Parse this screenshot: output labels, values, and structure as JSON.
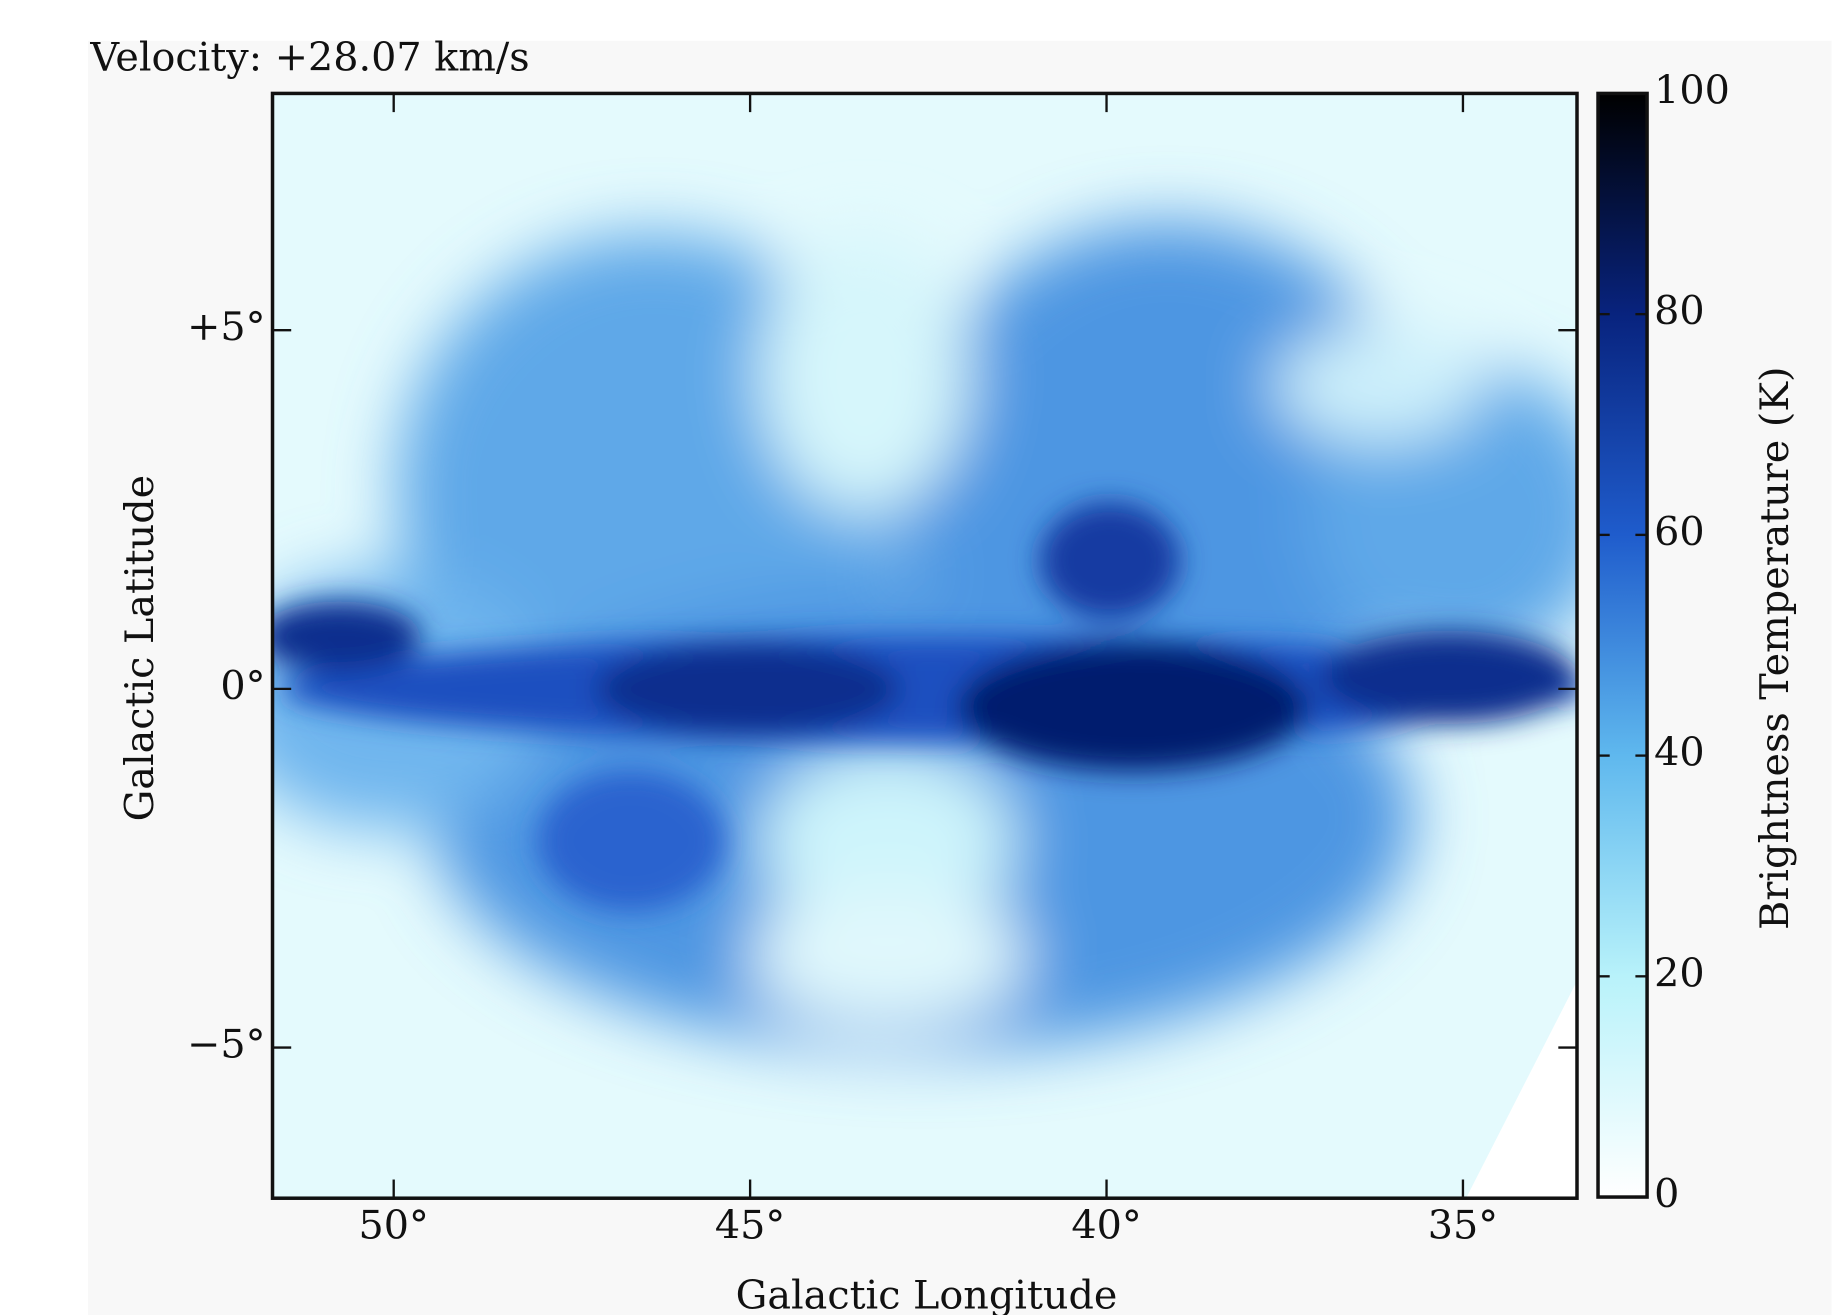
{
  "chart_data": {
    "type": "heatmap",
    "title": "Velocity: +28.07 km/s",
    "x_label": "Galactic Longitude",
    "y_label": "Galactic Latitude",
    "xlim": [
      51.7,
      33.4
    ],
    "ylim": [
      -7.1,
      8.3
    ],
    "xticks": [
      {
        "value": 50,
        "label": "50°"
      },
      {
        "value": 45,
        "label": "45°"
      },
      {
        "value": 40,
        "label": "40°"
      },
      {
        "value": 35,
        "label": "35°"
      }
    ],
    "yticks": [
      {
        "value": 5,
        "label": "+5°"
      },
      {
        "value": 0,
        "label": "0°"
      },
      {
        "value": -5,
        "label": "−5°"
      }
    ],
    "colorbar": {
      "label": "Brightness Temperature (K)",
      "lim": [
        0,
        100
      ],
      "ticks": [
        0,
        20,
        40,
        60,
        80,
        100
      ],
      "colormap": [
        "#ffffff",
        "#b8f2fa",
        "#5fb8ee",
        "#1f5ccc",
        "#08237e",
        "#000000"
      ]
    }
  }
}
